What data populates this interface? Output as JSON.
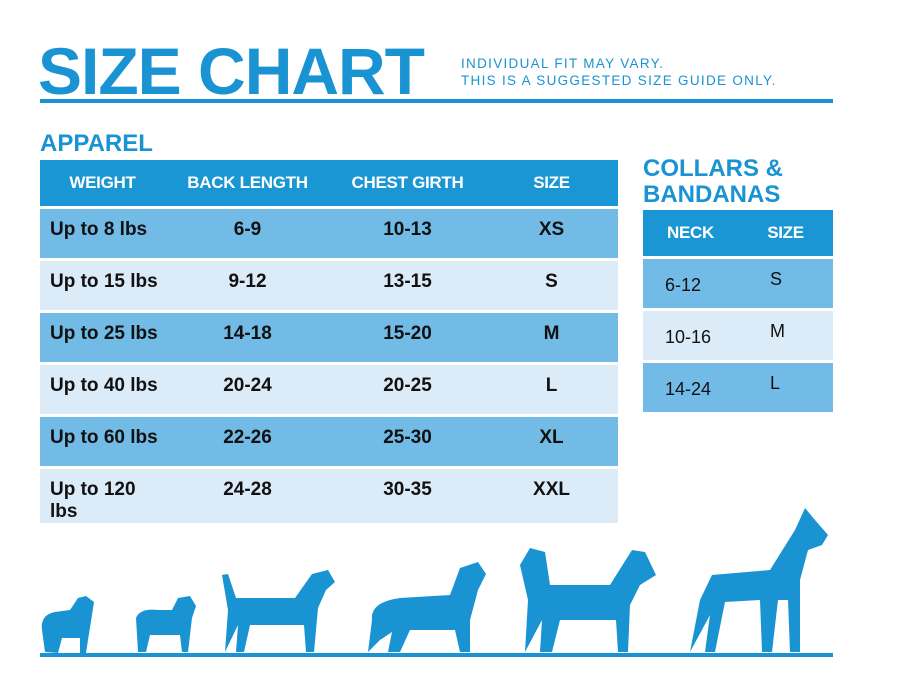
{
  "header": {
    "title": "SIZE CHART",
    "note_line1": "INDIVIDUAL FIT MAY VARY.",
    "note_line2": "THIS IS A SUGGESTED SIZE GUIDE ONLY."
  },
  "apparel": {
    "heading": "APPAREL",
    "columns": [
      "WEIGHT",
      "BACK LENGTH",
      "CHEST GIRTH",
      "SIZE"
    ],
    "rows": [
      [
        "Up to 8 lbs",
        "6-9",
        "10-13",
        "XS"
      ],
      [
        "Up to 15 lbs",
        "9-12",
        "13-15",
        "S"
      ],
      [
        "Up to 25 lbs",
        "14-18",
        "15-20",
        "M"
      ],
      [
        "Up to 40 lbs",
        "20-24",
        "20-25",
        "L"
      ],
      [
        "Up to 60 lbs",
        "22-26",
        "25-30",
        "XL"
      ],
      [
        "Up to 120 lbs",
        "24-28",
        "30-35",
        "XXL"
      ]
    ]
  },
  "collars": {
    "heading_line1": "COLLARS &",
    "heading_line2": "BANDANAS",
    "columns": [
      "NECK",
      "SIZE"
    ],
    "rows": [
      [
        "6-12",
        "S"
      ],
      [
        "10-16",
        "M"
      ],
      [
        "14-24",
        "L"
      ]
    ]
  },
  "colors": {
    "brand": "#1a93d2",
    "header": "#1a96d4",
    "row_dark": "#72bbe6",
    "row_light": "#dcebf8"
  }
}
